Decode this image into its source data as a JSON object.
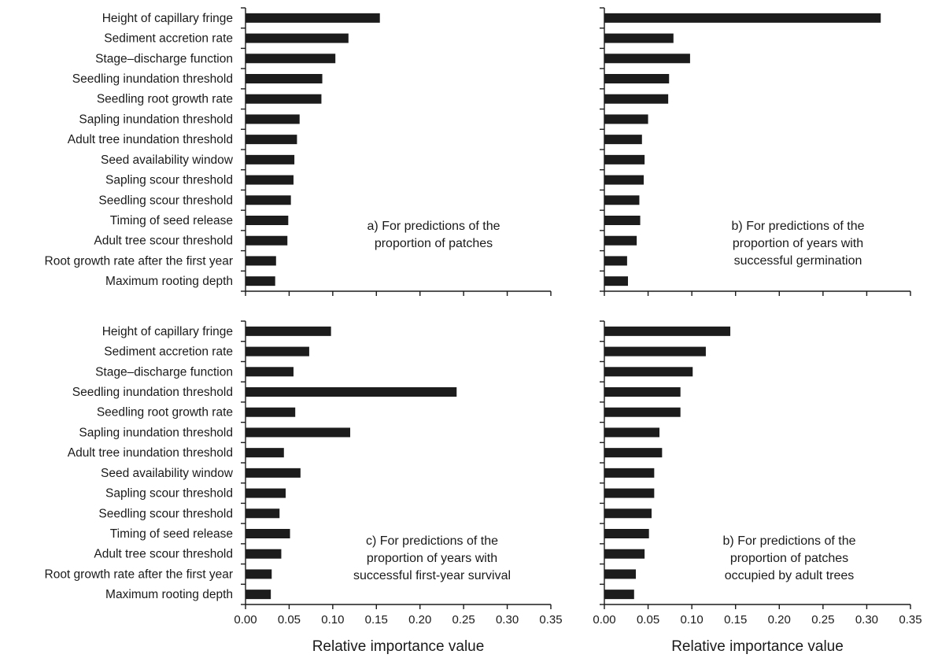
{
  "categories": [
    "Height of capillary fringe",
    "Sediment accretion rate",
    "Stage–discharge function",
    "Seedling inundation threshold",
    "Seedling root growth rate",
    "Sapling inundation threshold",
    "Adult tree inundation threshold",
    "Seed availability window",
    "Sapling scour threshold",
    "Seedling scour threshold",
    "Timing of seed release",
    "Adult tree scour threshold",
    "Root growth rate after the first year",
    "Maximum rooting depth"
  ],
  "x_ticks": [
    "0.00",
    "0.05",
    "0.10",
    "0.15",
    "0.20",
    "0.25",
    "0.30",
    "0.35"
  ],
  "xlabel": "Relative importance value",
  "chart_data": [
    {
      "type": "bar",
      "orientation": "horizontal",
      "panel": "a",
      "annotation": [
        "a) For predictions of the",
        "proportion of patches"
      ],
      "categories_ref": "categories",
      "values": [
        0.154,
        0.118,
        0.103,
        0.088,
        0.087,
        0.062,
        0.059,
        0.056,
        0.055,
        0.052,
        0.049,
        0.048,
        0.035,
        0.034
      ],
      "xlim": [
        0,
        0.35
      ],
      "xlabel": ""
    },
    {
      "type": "bar",
      "orientation": "horizontal",
      "panel": "b",
      "annotation": [
        "b) For predictions of the",
        "proportion of years with",
        "successful germination"
      ],
      "values": [
        0.316,
        0.079,
        0.098,
        0.074,
        0.073,
        0.05,
        0.043,
        0.046,
        0.045,
        0.04,
        0.041,
        0.037,
        0.026,
        0.027
      ],
      "xlim": [
        0,
        0.35
      ],
      "xlabel": ""
    },
    {
      "type": "bar",
      "orientation": "horizontal",
      "panel": "c",
      "annotation": [
        "c) For predictions of the",
        "proportion of years with",
        "successful first-year survival"
      ],
      "values": [
        0.098,
        0.073,
        0.055,
        0.242,
        0.057,
        0.12,
        0.044,
        0.063,
        0.046,
        0.039,
        0.051,
        0.041,
        0.03,
        0.029
      ],
      "xlim": [
        0,
        0.35
      ],
      "xlabel": "Relative importance value"
    },
    {
      "type": "bar",
      "orientation": "horizontal",
      "panel": "b",
      "annotation": [
        "b) For predictions of the",
        "proportion of patches",
        "occupied by adult trees"
      ],
      "values": [
        0.144,
        0.116,
        0.101,
        0.087,
        0.087,
        0.063,
        0.066,
        0.057,
        0.057,
        0.054,
        0.051,
        0.046,
        0.036,
        0.034
      ],
      "xlim": [
        0,
        0.35
      ],
      "xlabel": "Relative importance value"
    }
  ]
}
